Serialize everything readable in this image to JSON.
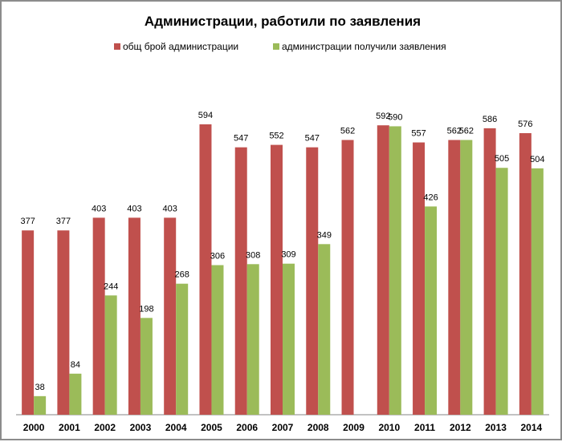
{
  "chart_data": {
    "type": "bar",
    "title": "Администрации, работили по заявления",
    "categories": [
      "2000",
      "2001",
      "2002",
      "2003",
      "2004",
      "2005",
      "2006",
      "2007",
      "2008",
      "2009",
      "2010",
      "2011",
      "2012",
      "2013",
      "2014"
    ],
    "series": [
      {
        "name": "общ брой администрации",
        "color": "#c0504d",
        "values": [
          377,
          377,
          403,
          403,
          403,
          594,
          547,
          552,
          547,
          562,
          592,
          557,
          562,
          586,
          576
        ]
      },
      {
        "name": "администрации получили заявления",
        "color": "#9bbb59",
        "values": [
          38,
          84,
          244,
          198,
          268,
          306,
          308,
          309,
          349,
          null,
          590,
          426,
          562,
          505,
          504
        ]
      }
    ],
    "xlabel": "",
    "ylabel": "",
    "ylim": [
      0,
      600
    ],
    "grid": false,
    "legend": "top"
  }
}
